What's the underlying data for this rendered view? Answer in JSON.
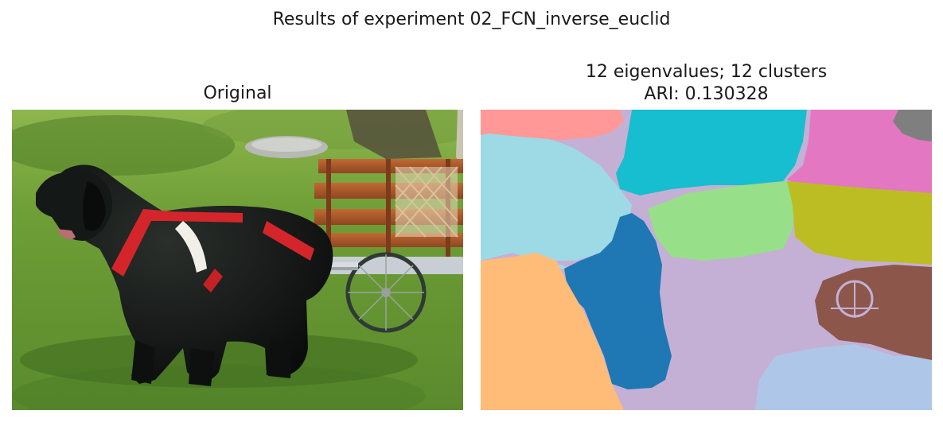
{
  "figure": {
    "suptitle": "Results of experiment 02_FCN_inverse_euclid"
  },
  "panels": {
    "original": {
      "title": "Original"
    },
    "clustering": {
      "title_line1": "12 eigenvalues; 12 clusters",
      "title_line2": "ARI: 0.130328",
      "cluster_colors": [
        "#ff9896",
        "#17becf",
        "#e377c2",
        "#7f7f7f",
        "#9edae5",
        "#c5b0d5",
        "#98df8a",
        "#bcbd22",
        "#1f77b4",
        "#ffbb78",
        "#8c564b",
        "#aec7e8"
      ]
    }
  }
}
